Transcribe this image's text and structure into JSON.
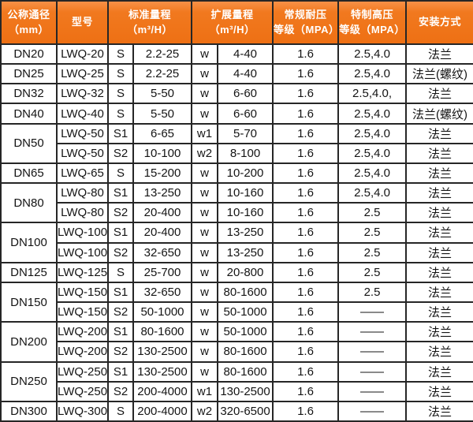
{
  "colors": {
    "header_bg": "#f0771e",
    "header_bg_top": "#f79147",
    "header_text": "#ffffff",
    "border": "#262626",
    "row_bg": "#ffffff",
    "body_text": "#141414"
  },
  "chart_data": {
    "type": "table",
    "title": "",
    "header": {
      "columns": [
        {
          "id": "dn",
          "label": "公称通径\n（mm）"
        },
        {
          "id": "model",
          "label": "型号"
        },
        {
          "id": "std",
          "label": "标准量程\n（m³/H）"
        },
        {
          "id": "ext",
          "label": "扩展量程\n（m³/H）"
        },
        {
          "id": "mpa",
          "label": "常规耐压\n等级（MPA）"
        },
        {
          "id": "high",
          "label": "特制高压\n等级（MPA）"
        },
        {
          "id": "install",
          "label": "安装方式"
        }
      ]
    },
    "rows": [
      {
        "dn": "DN20",
        "span": 1,
        "model": "LWQ-20",
        "s": "S",
        "std": "2.2-25",
        "w": "w",
        "ext": "4-40",
        "mpa": "1.6",
        "high": "2.5,4.0",
        "install": "法兰"
      },
      {
        "dn": "DN25",
        "span": 1,
        "model": "LWQ-25",
        "s": "S",
        "std": "2.2-25",
        "w": "w",
        "ext": "4-40",
        "mpa": "1.6",
        "high": "2.5,4.0",
        "install": "法兰(螺纹)"
      },
      {
        "dn": "DN32",
        "span": 1,
        "model": "LWQ-32",
        "s": "S",
        "std": "5-50",
        "w": "w",
        "ext": "6-60",
        "mpa": "1.6",
        "high": "2.5,4.0,",
        "install": "法兰"
      },
      {
        "dn": "DN40",
        "span": 1,
        "model": "LWQ-40",
        "s": "S",
        "std": "5-50",
        "w": "w",
        "ext": "6-60",
        "mpa": "1.6",
        "high": "2.5,4.0",
        "install": "法兰(螺纹)"
      },
      {
        "dn": "DN50",
        "span": 2,
        "model": "LWQ-50",
        "s": "S1",
        "std": "6-65",
        "w": "w1",
        "ext": "5-70",
        "mpa": "1.6",
        "high": "2.5,4.0",
        "install": "法兰"
      },
      {
        "dn": null,
        "model": "LWQ-50",
        "s": "S2",
        "std": "10-100",
        "w": "w2",
        "ext": "8-100",
        "mpa": "1.6",
        "high": "2.5,4.0",
        "install": "法兰"
      },
      {
        "dn": "DN65",
        "span": 1,
        "model": "LWQ-65",
        "s": "S",
        "std": "15-200",
        "w": "w",
        "ext": "10-200",
        "mpa": "1.6",
        "high": "2.5,4.0",
        "install": "法兰"
      },
      {
        "dn": "DN80",
        "span": 2,
        "model": "LWQ-80",
        "s": "S1",
        "std": "13-250",
        "w": "w",
        "ext": "10-160",
        "mpa": "1.6",
        "high": "2.5,4.0",
        "install": "法兰"
      },
      {
        "dn": null,
        "model": "LWQ-80",
        "s": "S2",
        "std": "20-400",
        "w": "w",
        "ext": "10-160",
        "mpa": "1.6",
        "high": "2.5",
        "install": "法兰"
      },
      {
        "dn": "DN100",
        "span": 2,
        "model": "LWQ-100",
        "s": "S1",
        "std": "20-400",
        "w": "w",
        "ext": "13-250",
        "mpa": "1.6",
        "high": "2.5",
        "install": "法兰"
      },
      {
        "dn": null,
        "model": "LWQ-100",
        "s": "S2",
        "std": "32-650",
        "w": "w",
        "ext": "13-250",
        "mpa": "1.6",
        "high": "2.5",
        "install": "法兰"
      },
      {
        "dn": "DN125",
        "span": 1,
        "model": "LWQ-125",
        "s": "S",
        "std": "25-700",
        "w": "w",
        "ext": "20-800",
        "mpa": "1.6",
        "high": "2.5",
        "install": "法兰"
      },
      {
        "dn": "DN150",
        "span": 2,
        "model": "LWQ-150",
        "s": "S1",
        "std": "32-650",
        "w": "w",
        "ext": "80-1600",
        "mpa": "1.6",
        "high": "2.5",
        "install": "法兰"
      },
      {
        "dn": null,
        "model": "LWQ-150",
        "s": "S2",
        "std": "50-1000",
        "w": "w",
        "ext": "50-1000",
        "mpa": "1.6",
        "high": "——",
        "install": "法兰"
      },
      {
        "dn": "DN200",
        "span": 2,
        "model": "LWQ-200",
        "s": "S1",
        "std": "80-1600",
        "w": "w",
        "ext": "50-1000",
        "mpa": "1.6",
        "high": "——",
        "install": "法兰"
      },
      {
        "dn": null,
        "model": "LWQ-200",
        "s": "S2",
        "std": "130-2500",
        "w": "w",
        "ext": "80-1600",
        "mpa": "1.6",
        "high": "——",
        "install": "法兰"
      },
      {
        "dn": "DN250",
        "span": 2,
        "model": "LWQ-250",
        "s": "S1",
        "std": "130-2500",
        "w": "w",
        "ext": "80-1600",
        "mpa": "1.6",
        "high": "——",
        "install": "法兰"
      },
      {
        "dn": null,
        "model": "LWQ-250",
        "s": "S2",
        "std": "200-4000",
        "w": "w1",
        "ext": "130-2500",
        "mpa": "1.6",
        "high": "——",
        "install": "法兰"
      },
      {
        "dn": "DN300",
        "span": 1,
        "model": "LWQ-300",
        "s": "S",
        "std": "200-4000",
        "w": "w2",
        "ext": "320-6500",
        "mpa": "1.6",
        "high": "——",
        "install": "法兰"
      }
    ]
  }
}
